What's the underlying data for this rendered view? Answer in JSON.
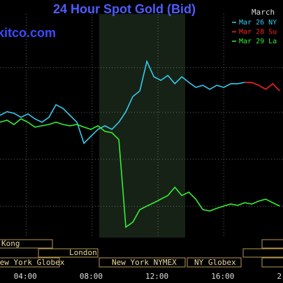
{
  "chart_data": {
    "type": "line",
    "title": "24 Hour Spot Gold (Bid)",
    "watermark": "kitco.com",
    "legend_title": "March",
    "x": [
      2.4,
      2.825,
      3.25,
      3.675,
      4.1,
      4.525,
      4.95,
      5.375,
      5.8,
      6.225,
      6.65,
      7.075,
      7.5,
      7.925,
      8.35,
      8.775,
      9.2,
      9.625,
      10.05,
      10.475,
      10.9,
      11.325,
      11.75,
      12.175,
      12.6,
      13.025,
      13.45,
      13.875,
      14.3,
      14.725,
      15.15,
      15.575,
      16,
      16.425,
      16.85,
      17.275,
      17.7,
      18.125,
      18.55,
      18.975,
      19.4
    ],
    "series": [
      {
        "name": "Mar 26 NY",
        "color": "#33ccee",
        "values": [
          54.7,
          56.3,
          55.6,
          53.8,
          55.3,
          53.1,
          51.6,
          53.8,
          59.4,
          57.8,
          54.7,
          51.6,
          42.2,
          45.3,
          48.4,
          50,
          48.4,
          51.6,
          56.3,
          63.1,
          65.6,
          78.8,
          71.9,
          70.3,
          72.5,
          68.8,
          71.9,
          69.4,
          67.2,
          68.1,
          66.3,
          68.1,
          67.2,
          68.8,
          68.8,
          69.4,
          null,
          null,
          null,
          null,
          null
        ]
      },
      {
        "name": "Mar 28 Su",
        "color": "#ff2020",
        "values": [
          null,
          null,
          null,
          null,
          null,
          null,
          null,
          null,
          null,
          null,
          null,
          null,
          null,
          null,
          null,
          null,
          null,
          null,
          null,
          null,
          null,
          null,
          null,
          null,
          null,
          null,
          null,
          null,
          null,
          null,
          null,
          null,
          null,
          null,
          null,
          69.4,
          69.4,
          68.1,
          66.3,
          68.8,
          65.6
        ]
      },
      {
        "name": "Mar 29 La",
        "color": "#33ee33",
        "values": [
          51.6,
          52.5,
          50.6,
          53.1,
          51.6,
          49.4,
          50,
          50.6,
          51.6,
          50.6,
          50,
          50.6,
          49.4,
          48.4,
          50,
          47.5,
          46.9,
          43.8,
          4.7,
          6.9,
          12.5,
          14.1,
          15.6,
          17.2,
          18.8,
          22.5,
          18.8,
          20.3,
          17.2,
          12.5,
          11.9,
          13.1,
          14.1,
          15,
          14.4,
          15.6,
          15,
          16.3,
          17.2,
          15.6,
          14.1
        ]
      }
    ],
    "xlim": [
      2.4,
      19.6
    ],
    "xticks": [
      {
        "value": 4,
        "label": "04:00"
      },
      {
        "value": 8,
        "label": "08:00"
      },
      {
        "value": 12,
        "label": "12:00"
      },
      {
        "value": 16,
        "label": "16:00"
      },
      {
        "value": 20,
        "label": "2"
      }
    ],
    "ylim": [
      0,
      100
    ],
    "yticks": [
      14,
      35,
      56,
      76
    ],
    "grid": true,
    "session_labels": [
      "Kong",
      "London",
      "New York Globex",
      "New York NYMEX",
      "NY Globex"
    ]
  }
}
